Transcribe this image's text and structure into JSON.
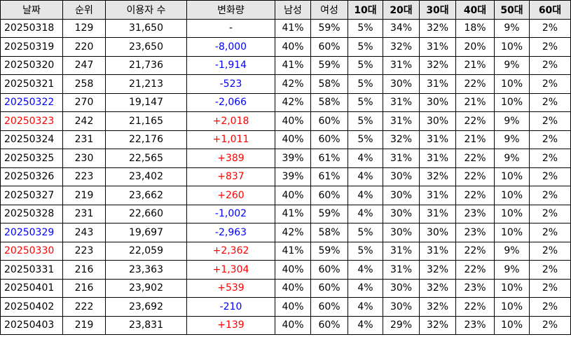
{
  "headers": [
    "날짜",
    "순위",
    "이용자 수",
    "변화량",
    "남성",
    "여성",
    "10대",
    "20대",
    "30대",
    "40대",
    "50대",
    "60대"
  ],
  "rows": [
    [
      "20250318",
      "129",
      "31,650",
      "-",
      "41%",
      "59%",
      "5%",
      "34%",
      "32%",
      "18%",
      "9%",
      "2%"
    ],
    [
      "20250319",
      "220",
      "23,650",
      "-8,000",
      "40%",
      "60%",
      "5%",
      "32%",
      "31%",
      "20%",
      "10%",
      "2%"
    ],
    [
      "20250320",
      "247",
      "21,736",
      "-1,914",
      "41%",
      "59%",
      "5%",
      "31%",
      "32%",
      "21%",
      "9%",
      "2%"
    ],
    [
      "20250321",
      "258",
      "21,213",
      "-523",
      "42%",
      "58%",
      "5%",
      "30%",
      "31%",
      "22%",
      "10%",
      "2%"
    ],
    [
      "20250322",
      "270",
      "19,147",
      "-2,066",
      "42%",
      "58%",
      "5%",
      "31%",
      "30%",
      "21%",
      "10%",
      "2%"
    ],
    [
      "20250323",
      "242",
      "21,165",
      "+2,018",
      "40%",
      "60%",
      "5%",
      "31%",
      "30%",
      "22%",
      "9%",
      "2%"
    ],
    [
      "20250324",
      "231",
      "22,176",
      "+1,011",
      "40%",
      "60%",
      "5%",
      "32%",
      "31%",
      "21%",
      "9%",
      "2%"
    ],
    [
      "20250325",
      "230",
      "22,565",
      "+389",
      "39%",
      "61%",
      "4%",
      "31%",
      "31%",
      "22%",
      "9%",
      "2%"
    ],
    [
      "20250326",
      "223",
      "23,402",
      "+837",
      "39%",
      "61%",
      "4%",
      "30%",
      "32%",
      "22%",
      "10%",
      "2%"
    ],
    [
      "20250327",
      "219",
      "23,662",
      "+260",
      "40%",
      "60%",
      "4%",
      "30%",
      "31%",
      "22%",
      "10%",
      "2%"
    ],
    [
      "20250328",
      "231",
      "22,660",
      "-1,002",
      "41%",
      "59%",
      "4%",
      "30%",
      "31%",
      "23%",
      "10%",
      "2%"
    ],
    [
      "20250329",
      "243",
      "19,697",
      "-2,963",
      "42%",
      "58%",
      "5%",
      "30%",
      "30%",
      "23%",
      "10%",
      "2%"
    ],
    [
      "20250330",
      "223",
      "22,059",
      "+2,362",
      "41%",
      "59%",
      "5%",
      "31%",
      "31%",
      "22%",
      "9%",
      "2%"
    ],
    [
      "20250331",
      "216",
      "23,363",
      "+1,304",
      "40%",
      "60%",
      "4%",
      "31%",
      "32%",
      "22%",
      "9%",
      "2%"
    ],
    [
      "20250401",
      "216",
      "23,902",
      "+539",
      "40%",
      "60%",
      "4%",
      "30%",
      "32%",
      "23%",
      "10%",
      "2%"
    ],
    [
      "20250402",
      "222",
      "23,692",
      "-210",
      "40%",
      "60%",
      "4%",
      "30%",
      "32%",
      "22%",
      "10%",
      "2%"
    ],
    [
      "20250403",
      "219",
      "23,831",
      "+139",
      "40%",
      "60%",
      "4%",
      "29%",
      "32%",
      "23%",
      "10%",
      "2%"
    ]
  ],
  "colors": {
    "positive_change": "#ff0000",
    "negative_change": "#0000ff",
    "saturday_date": "#0000ff",
    "sunday_date": "#ff0000",
    "header_background": "#e6e6e6"
  },
  "weekend": {
    "saturday_dates": [
      "20250322",
      "20250329"
    ],
    "sunday_dates": [
      "20250323",
      "20250330"
    ]
  }
}
